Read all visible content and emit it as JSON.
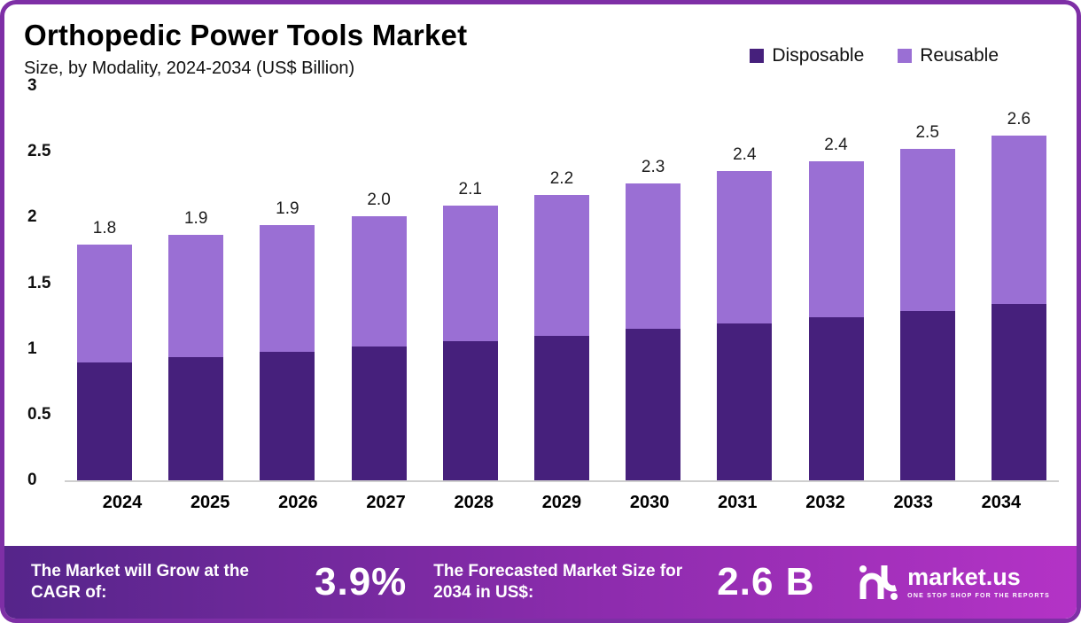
{
  "title": "Orthopedic Power Tools Market",
  "subtitle": "Size, by Modality, 2024-2034 (US$ Billion)",
  "legend": [
    {
      "label": "Disposable",
      "color": "#46207c"
    },
    {
      "label": "Reusable",
      "color": "#9a6fd4"
    }
  ],
  "chart_data": {
    "type": "bar",
    "stacked": true,
    "title": "Orthopedic Power Tools Market Size, by Modality, 2024-2034 (US$ Billion)",
    "categories": [
      "2024",
      "2025",
      "2026",
      "2027",
      "2028",
      "2029",
      "2030",
      "2031",
      "2032",
      "2033",
      "2034"
    ],
    "series": [
      {
        "name": "Disposable",
        "color": "#46207c",
        "values": [
          0.9,
          0.94,
          0.98,
          1.02,
          1.06,
          1.1,
          1.15,
          1.19,
          1.24,
          1.29,
          1.34
        ]
      },
      {
        "name": "Reusable",
        "color": "#9a6fd4",
        "values": [
          0.89,
          0.93,
          0.96,
          0.99,
          1.03,
          1.07,
          1.11,
          1.16,
          1.19,
          1.23,
          1.28
        ]
      }
    ],
    "totals": [
      1.8,
      1.9,
      1.9,
      2.0,
      2.1,
      2.2,
      2.3,
      2.4,
      2.4,
      2.5,
      2.6
    ],
    "xlabel": "",
    "ylabel": "",
    "ylim": [
      0,
      3
    ],
    "yticks": [
      0,
      0.5,
      1,
      1.5,
      2,
      2.5,
      3
    ],
    "grid": false,
    "legend_position": "top-right"
  },
  "footer": {
    "cagr_label": "The Market will Grow at the CAGR of:",
    "cagr_value": "3.9%",
    "forecast_label": "The Forecasted Market Size for 2034 in US$:",
    "forecast_value": "2.6 B",
    "brand": "market.us",
    "brand_tagline": "ONE STOP SHOP FOR THE REPORTS"
  },
  "colors": {
    "frame_border": "#7e2fa6",
    "footer_gradient_start": "#55258a",
    "footer_gradient_end": "#b433c6",
    "disposable": "#46207c",
    "reusable": "#9a6fd4"
  }
}
